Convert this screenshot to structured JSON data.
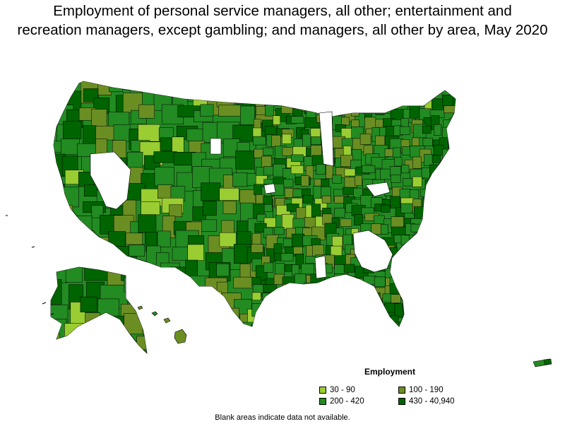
{
  "title": {
    "line1": "Employment of personal service managers, all other; entertainment and",
    "line2": "recreation managers, except gambling; and managers, all other by area, May 2020"
  },
  "legend": {
    "title": "Employment",
    "items": [
      {
        "label": "30 - 90",
        "color": "#9acd32"
      },
      {
        "label": "100 - 190",
        "color": "#6b8e23"
      },
      {
        "label": "200 - 420",
        "color": "#228b22"
      },
      {
        "label": "430 - 40,940",
        "color": "#006400"
      }
    ]
  },
  "note": "Blank areas indicate data not available.",
  "colors": {
    "blank": "#ffffff",
    "border": "#000000"
  }
}
